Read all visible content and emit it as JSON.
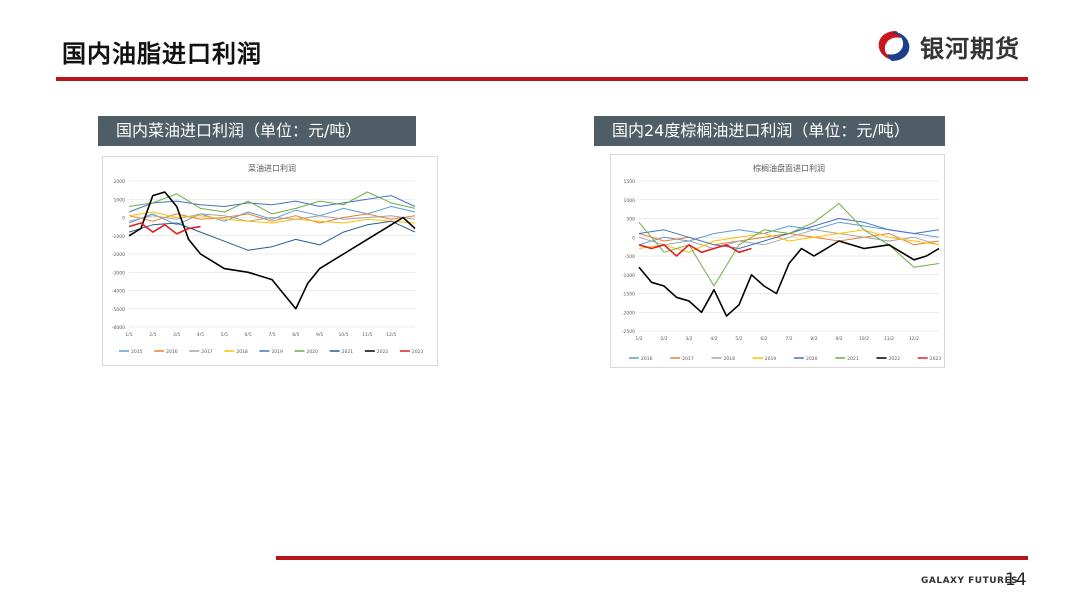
{
  "header": {
    "title": "国内油脂进口利润",
    "brand_name": "银河期货",
    "brand_colors": {
      "red": "#c8161d",
      "navy": "#1c3f8c",
      "rule": "#b8141d"
    }
  },
  "panels": [
    {
      "label": "国内菜油进口利润（单位：元/吨）"
    },
    {
      "label": "国内24度棕榈油进口利润（单位：元/吨）"
    }
  ],
  "chart_data": [
    {
      "type": "line",
      "title": "菜油进口利润",
      "ylim": [
        -6000,
        2000
      ],
      "yticks": [
        2000,
        1000,
        0,
        -1000,
        -2000,
        -3000,
        -4000,
        -5000,
        -6000
      ],
      "ytick_labels": [
        "2000",
        "1000",
        "0",
        "-1000",
        "-2000",
        "-3000",
        "-4000",
        "-5000",
        "-6000"
      ],
      "xlim": [
        0,
        12
      ],
      "xticks": [
        0,
        1,
        2,
        3,
        4,
        5,
        6,
        7,
        8,
        9,
        10,
        11,
        12
      ],
      "xtick_labels": [
        "1/5",
        "2/5",
        "3/5",
        "4/5",
        "5/5",
        "6/5",
        "7/5",
        "8/5",
        "9/5",
        "10/5",
        "11/5",
        "12/5",
        ""
      ],
      "grid": true,
      "legend": "bottom",
      "series": [
        {
          "name": "2015",
          "color": "#5b9bd5",
          "points": [
            [
              0,
              -300
            ],
            [
              1,
              200
            ],
            [
              2,
              -400
            ],
            [
              3,
              200
            ],
            [
              4,
              -200
            ],
            [
              5,
              300
            ],
            [
              6,
              -100
            ],
            [
              7,
              400
            ],
            [
              8,
              100
            ],
            [
              9,
              500
            ],
            [
              10,
              200
            ],
            [
              11,
              600
            ],
            [
              12,
              300
            ]
          ]
        },
        {
          "name": "2016",
          "color": "#ed7d31",
          "points": [
            [
              0,
              100
            ],
            [
              1,
              -200
            ],
            [
              2,
              200
            ],
            [
              3,
              -100
            ],
            [
              4,
              0
            ],
            [
              5,
              200
            ],
            [
              6,
              -200
            ],
            [
              7,
              100
            ],
            [
              8,
              -300
            ],
            [
              9,
              0
            ],
            [
              10,
              200
            ],
            [
              11,
              -100
            ],
            [
              12,
              100
            ]
          ]
        },
        {
          "name": "2017",
          "color": "#a5a5a5",
          "points": [
            [
              0,
              -200
            ],
            [
              1,
              100
            ],
            [
              2,
              -100
            ],
            [
              3,
              200
            ],
            [
              4,
              100
            ],
            [
              5,
              -200
            ],
            [
              6,
              0
            ],
            [
              7,
              -100
            ],
            [
              8,
              100
            ],
            [
              9,
              -100
            ],
            [
              10,
              0
            ],
            [
              11,
              100
            ],
            [
              12,
              -100
            ]
          ]
        },
        {
          "name": "2018",
          "color": "#ffc000",
          "points": [
            [
              0,
              100
            ],
            [
              1,
              300
            ],
            [
              2,
              0
            ],
            [
              3,
              100
            ],
            [
              4,
              -100
            ],
            [
              5,
              -200
            ],
            [
              6,
              -300
            ],
            [
              7,
              -100
            ],
            [
              8,
              -200
            ],
            [
              9,
              -300
            ],
            [
              10,
              -100
            ],
            [
              11,
              -200
            ],
            [
              12,
              -300
            ]
          ]
        },
        {
          "name": "2019",
          "color": "#4472c4",
          "points": [
            [
              0,
              300
            ],
            [
              1,
              800
            ],
            [
              2,
              900
            ],
            [
              3,
              700
            ],
            [
              4,
              600
            ],
            [
              5,
              800
            ],
            [
              6,
              700
            ],
            [
              7,
              900
            ],
            [
              8,
              600
            ],
            [
              9,
              800
            ],
            [
              10,
              1000
            ],
            [
              11,
              1200
            ],
            [
              12,
              600
            ]
          ]
        },
        {
          "name": "2020",
          "color": "#70ad47",
          "points": [
            [
              0,
              600
            ],
            [
              1,
              800
            ],
            [
              2,
              1300
            ],
            [
              3,
              500
            ],
            [
              4,
              300
            ],
            [
              5,
              900
            ],
            [
              6,
              200
            ],
            [
              7,
              500
            ],
            [
              8,
              900
            ],
            [
              9,
              700
            ],
            [
              10,
              1400
            ],
            [
              11,
              800
            ],
            [
              12,
              500
            ]
          ]
        },
        {
          "name": "2021",
          "color": "#255e91",
          "points": [
            [
              0,
              -800
            ],
            [
              1,
              -400
            ],
            [
              2,
              -300
            ],
            [
              3,
              -800
            ],
            [
              4,
              -1300
            ],
            [
              5,
              -1800
            ],
            [
              6,
              -1600
            ],
            [
              7,
              -1200
            ],
            [
              8,
              -1500
            ],
            [
              9,
              -800
            ],
            [
              10,
              -400
            ],
            [
              11,
              -200
            ],
            [
              12,
              -800
            ]
          ]
        },
        {
          "name": "2022",
          "color": "#000000",
          "points": [
            [
              0,
              -1000
            ],
            [
              0.5,
              -600
            ],
            [
              1,
              1200
            ],
            [
              1.5,
              1400
            ],
            [
              2,
              600
            ],
            [
              2.5,
              -1200
            ],
            [
              3,
              -2000
            ],
            [
              4,
              -2800
            ],
            [
              5,
              -3000
            ],
            [
              6,
              -3400
            ],
            [
              6.5,
              -4200
            ],
            [
              7,
              -5000
            ],
            [
              7.5,
              -3600
            ],
            [
              8,
              -2800
            ],
            [
              9,
              -2000
            ],
            [
              10,
              -1200
            ],
            [
              10.5,
              -800
            ],
            [
              11,
              -400
            ],
            [
              11.5,
              0
            ],
            [
              12,
              -600
            ]
          ]
        },
        {
          "name": "2023",
          "color": "#e02020",
          "points": [
            [
              0,
              -500
            ],
            [
              0.5,
              -300
            ],
            [
              1,
              -800
            ],
            [
              1.5,
              -400
            ],
            [
              2,
              -900
            ],
            [
              2.5,
              -600
            ],
            [
              3,
              -500
            ]
          ]
        }
      ]
    },
    {
      "type": "line",
      "title": "棕榈油盘面进口利润",
      "ylim": [
        -2500,
        1500
      ],
      "yticks": [
        1500,
        1000,
        500,
        0,
        -500,
        -1000,
        -1500,
        -2000,
        -2500
      ],
      "ytick_labels": [
        "1500",
        "1000",
        "500",
        "0",
        "-500",
        "-1000",
        "-1500",
        "-2000",
        "-2500"
      ],
      "xlim": [
        0,
        12
      ],
      "xticks": [
        0,
        1,
        2,
        3,
        4,
        5,
        6,
        7,
        8,
        9,
        10,
        11,
        12
      ],
      "xtick_labels": [
        "1/2",
        "2/2",
        "3/2",
        "4/2",
        "5/2",
        "6/2",
        "7/2",
        "8/2",
        "9/2",
        "10/2",
        "11/2",
        "12/2",
        ""
      ],
      "grid": true,
      "legend": "bottom",
      "series": [
        {
          "name": "2016",
          "color": "#5b9bd5",
          "points": [
            [
              0,
              -200
            ],
            [
              1,
              0
            ],
            [
              2,
              -100
            ],
            [
              3,
              100
            ],
            [
              4,
              200
            ],
            [
              5,
              100
            ],
            [
              6,
              300
            ],
            [
              7,
              200
            ],
            [
              8,
              400
            ],
            [
              9,
              300
            ],
            [
              10,
              200
            ],
            [
              11,
              100
            ],
            [
              12,
              0
            ]
          ]
        },
        {
          "name": "2017",
          "color": "#ed7d31",
          "points": [
            [
              0,
              100
            ],
            [
              1,
              -100
            ],
            [
              2,
              0
            ],
            [
              3,
              -200
            ],
            [
              4,
              -100
            ],
            [
              5,
              0
            ],
            [
              6,
              100
            ],
            [
              7,
              0
            ],
            [
              8,
              -100
            ],
            [
              9,
              0
            ],
            [
              10,
              100
            ],
            [
              11,
              -200
            ],
            [
              12,
              -100
            ]
          ]
        },
        {
          "name": "2018",
          "color": "#a5a5a5",
          "points": [
            [
              0,
              0
            ],
            [
              1,
              -200
            ],
            [
              2,
              -100
            ],
            [
              3,
              -300
            ],
            [
              4,
              -100
            ],
            [
              5,
              -200
            ],
            [
              6,
              0
            ],
            [
              7,
              200
            ],
            [
              8,
              100
            ],
            [
              9,
              0
            ],
            [
              10,
              -100
            ],
            [
              11,
              0
            ],
            [
              12,
              -200
            ]
          ]
        },
        {
          "name": "2019",
          "color": "#ffc000",
          "points": [
            [
              0,
              -300
            ],
            [
              1,
              -200
            ],
            [
              2,
              -400
            ],
            [
              3,
              -100
            ],
            [
              4,
              0
            ],
            [
              5,
              100
            ],
            [
              6,
              -100
            ],
            [
              7,
              0
            ],
            [
              8,
              100
            ],
            [
              9,
              200
            ],
            [
              10,
              0
            ],
            [
              11,
              -100
            ],
            [
              12,
              -200
            ]
          ]
        },
        {
          "name": "2020",
          "color": "#4472c4",
          "points": [
            [
              0,
              100
            ],
            [
              1,
              200
            ],
            [
              2,
              0
            ],
            [
              3,
              -200
            ],
            [
              4,
              -300
            ],
            [
              5,
              -100
            ],
            [
              6,
              100
            ],
            [
              7,
              300
            ],
            [
              8,
              500
            ],
            [
              9,
              400
            ],
            [
              10,
              200
            ],
            [
              11,
              100
            ],
            [
              12,
              200
            ]
          ]
        },
        {
          "name": "2021",
          "color": "#70ad47",
          "points": [
            [
              0,
              400
            ],
            [
              1,
              -400
            ],
            [
              2,
              -200
            ],
            [
              3,
              -1300
            ],
            [
              4,
              -200
            ],
            [
              5,
              200
            ],
            [
              6,
              100
            ],
            [
              7,
              400
            ],
            [
              8,
              900
            ],
            [
              9,
              200
            ],
            [
              10,
              -200
            ],
            [
              11,
              -800
            ],
            [
              12,
              -700
            ]
          ]
        },
        {
          "name": "2022",
          "color": "#000000",
          "points": [
            [
              0,
              -800
            ],
            [
              0.5,
              -1200
            ],
            [
              1,
              -1300
            ],
            [
              1.5,
              -1600
            ],
            [
              2,
              -1700
            ],
            [
              2.5,
              -2000
            ],
            [
              3,
              -1400
            ],
            [
              3.5,
              -2100
            ],
            [
              4,
              -1800
            ],
            [
              4.5,
              -1000
            ],
            [
              5,
              -1300
            ],
            [
              5.5,
              -1500
            ],
            [
              6,
              -700
            ],
            [
              6.5,
              -300
            ],
            [
              7,
              -500
            ],
            [
              8,
              -100
            ],
            [
              9,
              -300
            ],
            [
              10,
              -200
            ],
            [
              11,
              -600
            ],
            [
              11.5,
              -500
            ],
            [
              12,
              -300
            ]
          ]
        },
        {
          "name": "2023",
          "color": "#e02020",
          "points": [
            [
              0,
              -200
            ],
            [
              0.5,
              -300
            ],
            [
              1,
              -200
            ],
            [
              1.5,
              -500
            ],
            [
              2,
              -200
            ],
            [
              2.5,
              -400
            ],
            [
              3,
              -300
            ],
            [
              3.5,
              -200
            ],
            [
              4,
              -400
            ],
            [
              4.5,
              -300
            ]
          ]
        }
      ]
    }
  ],
  "footer": {
    "brand_en": "GALAXY FUTURES",
    "page_number": "14"
  }
}
